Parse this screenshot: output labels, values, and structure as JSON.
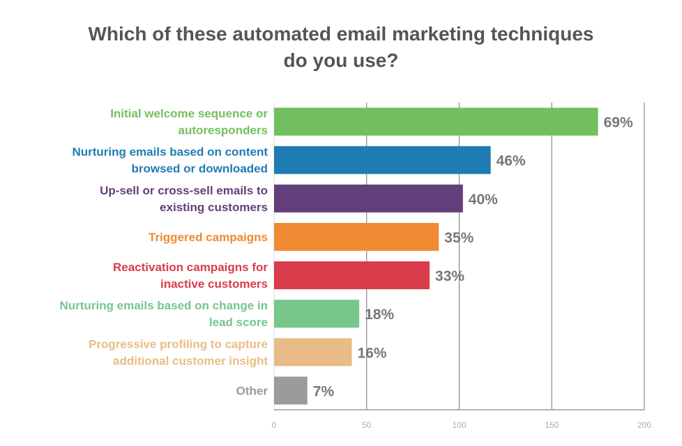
{
  "chart_data": {
    "type": "bar",
    "orientation": "horizontal",
    "title_lines": [
      "Which of these automated email marketing techniques",
      "do you use?"
    ],
    "categories": [
      [
        "Initial welcome sequence or",
        "autoresponders"
      ],
      [
        "Nurturing emails based on content",
        "browsed or downloaded"
      ],
      [
        "Up-sell or cross-sell emails to",
        "existing customers"
      ],
      [
        "Triggered campaigns"
      ],
      [
        "Reactivation campaigns for",
        "inactive customers"
      ],
      [
        "Nurturing emails based on change in",
        "lead score"
      ],
      [
        "Progressive profiling to capture",
        "additional customer insight"
      ],
      [
        "Other"
      ]
    ],
    "values": [
      175,
      117,
      102,
      89,
      84,
      46,
      42,
      18
    ],
    "data_labels": [
      "69%",
      "46%",
      "40%",
      "35%",
      "33%",
      "18%",
      "16%",
      "7%"
    ],
    "colors": [
      "#72bf5f",
      "#1f7bb4",
      "#623f7a",
      "#ef8a32",
      "#d93c4a",
      "#78c68a",
      "#e9bb86",
      "#9a9c9c"
    ],
    "xlim": [
      0,
      200
    ],
    "xticks": [
      "0",
      "50",
      "100",
      "150",
      "200"
    ],
    "grid": true
  }
}
